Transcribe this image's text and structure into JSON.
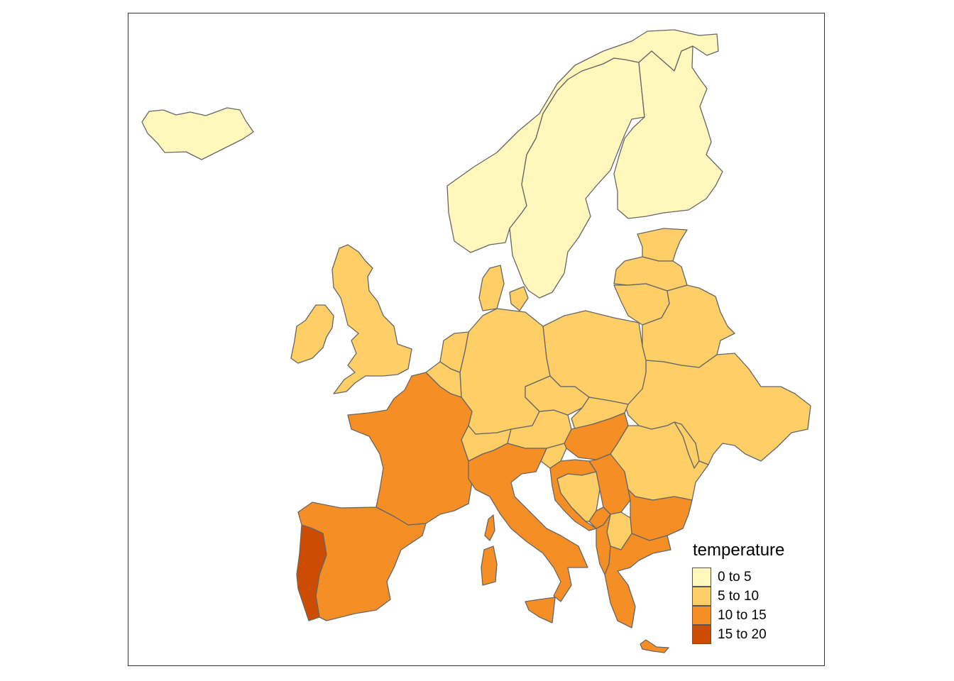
{
  "legend": {
    "title": "temperature",
    "classes": [
      {
        "label": "0 to 5",
        "color": "#FFF7BC"
      },
      {
        "label": "5 to 10",
        "color": "#FECF66"
      },
      {
        "label": "10 to 15",
        "color": "#F58E25"
      },
      {
        "label": "15 to 20",
        "color": "#CC4C02"
      }
    ]
  },
  "map": {
    "variable": "temperature",
    "regions": [
      {
        "id": "iceland",
        "class": 0
      },
      {
        "id": "norway",
        "class": 0
      },
      {
        "id": "sweden",
        "class": 0
      },
      {
        "id": "finland",
        "class": 0
      },
      {
        "id": "estonia",
        "class": 1
      },
      {
        "id": "latvia",
        "class": 1
      },
      {
        "id": "lithuania",
        "class": 1
      },
      {
        "id": "belarus",
        "class": 1
      },
      {
        "id": "ukraine",
        "class": 1
      },
      {
        "id": "poland",
        "class": 1
      },
      {
        "id": "germany",
        "class": 1
      },
      {
        "id": "denmark",
        "class": 1
      },
      {
        "id": "netherlands",
        "class": 1
      },
      {
        "id": "belgium",
        "class": 1
      },
      {
        "id": "united-kingdom",
        "class": 1
      },
      {
        "id": "ireland",
        "class": 1
      },
      {
        "id": "czechia",
        "class": 1
      },
      {
        "id": "slovakia",
        "class": 1
      },
      {
        "id": "austria",
        "class": 1
      },
      {
        "id": "switzerland",
        "class": 1
      },
      {
        "id": "slovenia",
        "class": 1
      },
      {
        "id": "romania",
        "class": 1
      },
      {
        "id": "moldova",
        "class": 1
      },
      {
        "id": "bosnia",
        "class": 1
      },
      {
        "id": "north-macedonia",
        "class": 1
      },
      {
        "id": "france",
        "class": 2
      },
      {
        "id": "spain",
        "class": 2
      },
      {
        "id": "italy",
        "class": 2
      },
      {
        "id": "sardinia",
        "class": 2
      },
      {
        "id": "corsica",
        "class": 2
      },
      {
        "id": "sicily",
        "class": 2
      },
      {
        "id": "hungary",
        "class": 2
      },
      {
        "id": "croatia",
        "class": 2
      },
      {
        "id": "serbia",
        "class": 2
      },
      {
        "id": "montenegro",
        "class": 2
      },
      {
        "id": "albania",
        "class": 2
      },
      {
        "id": "bulgaria",
        "class": 2
      },
      {
        "id": "greece",
        "class": 2
      },
      {
        "id": "crete",
        "class": 2
      },
      {
        "id": "portugal",
        "class": 3
      }
    ]
  }
}
